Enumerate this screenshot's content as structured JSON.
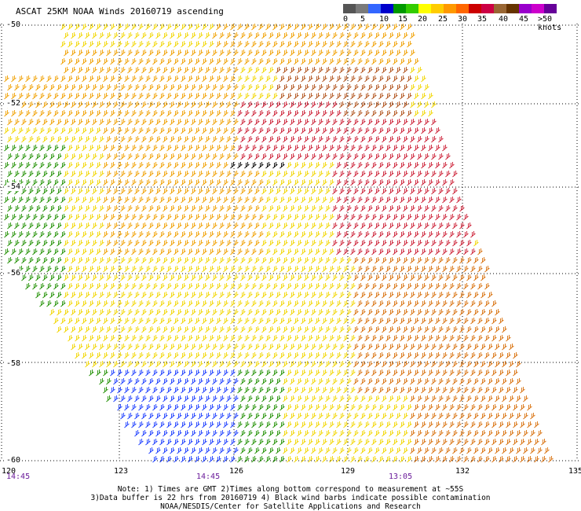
{
  "title": "ASCAT 25KM NOAA Winds 20160719 ascending",
  "legend": {
    "colors": [
      "#555555",
      "#7a7a7a",
      "#3366ff",
      "#0000cc",
      "#009900",
      "#33cc00",
      "#ffff00",
      "#ffcc00",
      "#ff9900",
      "#ff6600",
      "#cc0000",
      "#cc0044",
      "#996633",
      "#663300",
      "#9900cc",
      "#cc00cc",
      "#660099"
    ],
    "labels": [
      "0",
      "5",
      "10",
      "15",
      "20",
      "25",
      "30",
      "35",
      "40",
      "45",
      ">50 knots"
    ]
  },
  "latitudes": [
    "-50",
    "-52",
    "-54",
    "-56",
    "-58",
    "-60"
  ],
  "longitudes": [
    "120",
    "123",
    "126",
    "129",
    "132",
    "135"
  ],
  "times": [
    "14:45",
    "14:45",
    "13:05"
  ],
  "notes": [
    "Note: 1) Times are GMT 2)Times along bottom correspond to measurement at ~55S",
    "3)Data buffer is 22 hrs from 20160719 4) Black wind barbs indicate possible contamination",
    "NOAA/NESDIS/Center for Satellite Applications and Research"
  ],
  "wind_field": {
    "units": "knots",
    "barb_colors": {
      "calm_blue": "#1a3cff",
      "green": "#1f8f00",
      "yellow": "#f2d600",
      "orange": "#f0a000",
      "dark_orange": "#d8700c",
      "brown": "#b05018",
      "red": "#cc1e34",
      "contamination": "#000000"
    }
  }
}
